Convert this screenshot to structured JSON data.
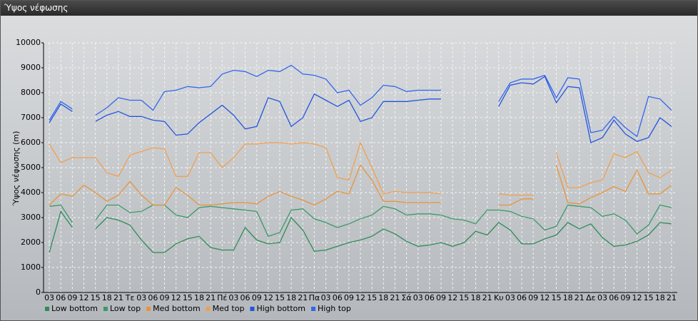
{
  "chart_data": {
    "type": "line",
    "title": "Ύψος νέφωσης",
    "y_label": "Ύψος νέφωσης (m)",
    "categories": [
      "03",
      "06",
      "09",
      "12",
      "15",
      "18",
      "21",
      "Τε",
      "03",
      "06",
      "09",
      "12",
      "15",
      "18",
      "21",
      "Πέ",
      "03",
      "06",
      "09",
      "12",
      "15",
      "18",
      "21",
      "Πα",
      "03",
      "06",
      "09",
      "12",
      "15",
      "18",
      "21",
      "Σά",
      "03",
      "06",
      "09",
      "12",
      "15",
      "18",
      "21",
      "Κυ",
      "03",
      "06",
      "09",
      "12",
      "15",
      "18",
      "21",
      "Δε",
      "03",
      "06",
      "09",
      "12",
      "15",
      "18",
      "21"
    ],
    "ylim": [
      0,
      10000
    ],
    "yticks": [
      0,
      1000,
      2000,
      3000,
      4000,
      5000,
      6000,
      7000,
      8000,
      9000,
      10000
    ],
    "grid": true,
    "legend": "bottom",
    "series": [
      {
        "name": "Low bottom",
        "color": "#2e8b57",
        "values": [
          1600,
          3250,
          2600,
          null,
          2550,
          3000,
          2900,
          2700,
          2100,
          1600,
          1600,
          1950,
          2150,
          2250,
          1800,
          1700,
          1700,
          2600,
          2100,
          1950,
          2000,
          3000,
          2500,
          1650,
          1700,
          1850,
          2000,
          2100,
          2250,
          2550,
          2350,
          2050,
          1850,
          1900,
          2000,
          1850,
          2000,
          2450,
          2300,
          2800,
          2500,
          1950,
          1950,
          2150,
          2300,
          2800,
          2550,
          2750,
          2200,
          1850,
          1900,
          2050,
          2300,
          2800,
          2750
        ]
      },
      {
        "name": "Low top",
        "color": "#3a9a68",
        "values": [
          3450,
          3500,
          2800,
          null,
          2900,
          3500,
          3500,
          3200,
          3250,
          3500,
          3500,
          3100,
          3000,
          3400,
          3450,
          3400,
          3350,
          3300,
          3250,
          2250,
          2400,
          3300,
          3350,
          2950,
          2800,
          2600,
          2750,
          2950,
          3100,
          3450,
          3350,
          3100,
          3150,
          3150,
          3100,
          2950,
          2900,
          2750,
          3300,
          3300,
          3250,
          3050,
          2950,
          2500,
          2650,
          3500,
          3450,
          3400,
          3050,
          3150,
          2900,
          2350,
          2700,
          3500,
          3400
        ]
      },
      {
        "name": "Med bottom",
        "color": "#e8943a",
        "values": [
          3500,
          3950,
          3850,
          4300,
          4000,
          3650,
          3900,
          4450,
          3900,
          3500,
          3500,
          4200,
          3900,
          3500,
          3500,
          3550,
          3600,
          3600,
          3550,
          3850,
          4050,
          3850,
          3700,
          3500,
          3750,
          4050,
          3950,
          5100,
          4500,
          3650,
          3650,
          3600,
          3600,
          3600,
          3600,
          null,
          null,
          null,
          null,
          3500,
          3500,
          3750,
          3750,
          null,
          5100,
          3600,
          3550,
          3800,
          4000,
          4250,
          4050,
          4900,
          3950,
          3950,
          4300
        ]
      },
      {
        "name": "Med top",
        "color": "#f0a050",
        "values": [
          5950,
          5200,
          5400,
          5400,
          5400,
          4800,
          4650,
          5500,
          5650,
          5800,
          5750,
          4650,
          4650,
          5600,
          5600,
          5000,
          5400,
          5950,
          5950,
          6000,
          6000,
          5950,
          6000,
          5950,
          5800,
          4600,
          4500,
          6000,
          5000,
          3950,
          4050,
          4000,
          4000,
          4000,
          3950,
          null,
          null,
          null,
          null,
          3950,
          3900,
          3900,
          3900,
          null,
          5600,
          4200,
          4200,
          4400,
          4500,
          5550,
          5400,
          5650,
          4800,
          4600,
          4900
        ]
      },
      {
        "name": "High bottom",
        "color": "#2255dd",
        "values": [
          6800,
          7550,
          7250,
          null,
          6850,
          7100,
          7250,
          7050,
          7050,
          6900,
          6850,
          6300,
          6350,
          6800,
          7150,
          7500,
          7100,
          6550,
          6650,
          7800,
          7650,
          6650,
          7000,
          7950,
          7700,
          7450,
          7700,
          6850,
          7000,
          7650,
          7650,
          7650,
          7700,
          7750,
          7750,
          null,
          null,
          null,
          null,
          7450,
          8300,
          8400,
          8350,
          8650,
          7600,
          8250,
          8200,
          6000,
          6200,
          6900,
          6350,
          6050,
          6200,
          7000,
          6650
        ]
      },
      {
        "name": "High top",
        "color": "#3366ee",
        "values": [
          6900,
          7650,
          7350,
          null,
          7100,
          7400,
          7800,
          7700,
          7700,
          7300,
          8050,
          8100,
          8250,
          8200,
          8250,
          8750,
          8900,
          8850,
          8650,
          8900,
          8850,
          9100,
          8750,
          8700,
          8550,
          8000,
          8100,
          7500,
          7800,
          8300,
          8250,
          8050,
          8100,
          8100,
          8100,
          null,
          null,
          null,
          null,
          7650,
          8400,
          8550,
          8550,
          8700,
          7800,
          8600,
          8550,
          6400,
          6500,
          7050,
          6600,
          6250,
          7850,
          7750,
          7300
        ]
      }
    ]
  }
}
